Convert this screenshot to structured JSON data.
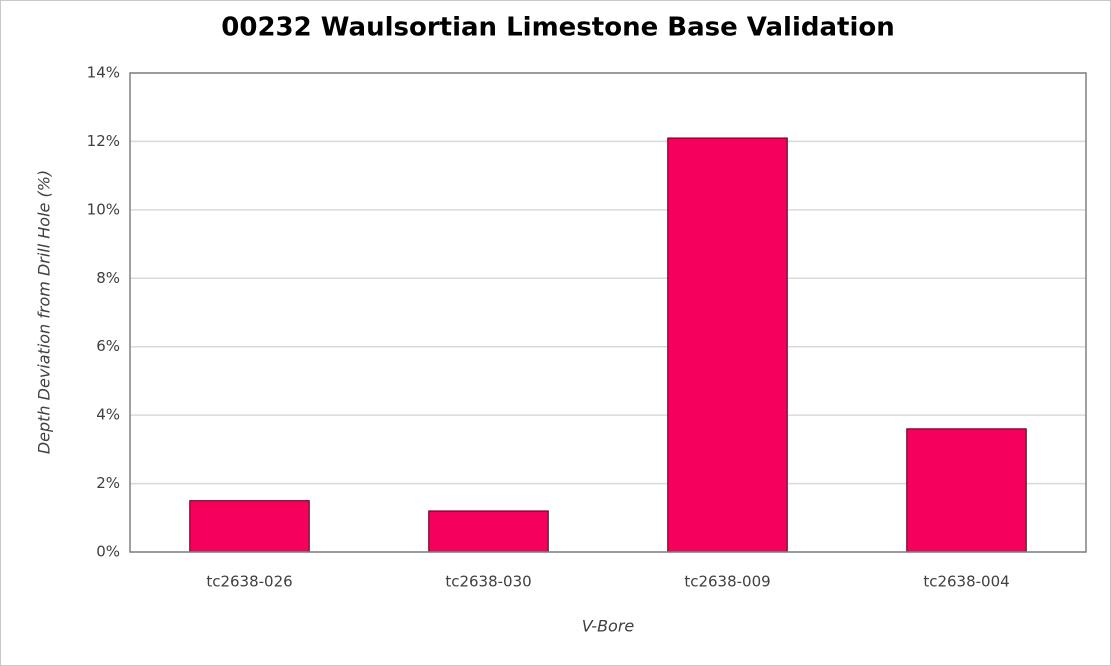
{
  "chart_data": {
    "type": "bar",
    "title": "00232 Waulsortian Limestone Base Validation",
    "x_label": "V-Bore",
    "y_label": "Depth Deviation from Drill Hole (%)",
    "categories": [
      "tc2638-026",
      "tc2638-030",
      "tc2638-009",
      "tc2638-004"
    ],
    "values": [
      1.5,
      1.2,
      12.1,
      3.6
    ],
    "color": "#f5005a",
    "ylim": [
      0,
      14
    ],
    "yticks": [
      {
        "value": 0,
        "label": "0%"
      },
      {
        "value": 2,
        "label": "2%"
      },
      {
        "value": 4,
        "label": "4%"
      },
      {
        "value": 6,
        "label": "6%"
      },
      {
        "value": 8,
        "label": "8%"
      },
      {
        "value": 10,
        "label": "10%"
      },
      {
        "value": 12,
        "label": "12%"
      },
      {
        "value": 14,
        "label": "14%"
      }
    ],
    "grid": true
  }
}
